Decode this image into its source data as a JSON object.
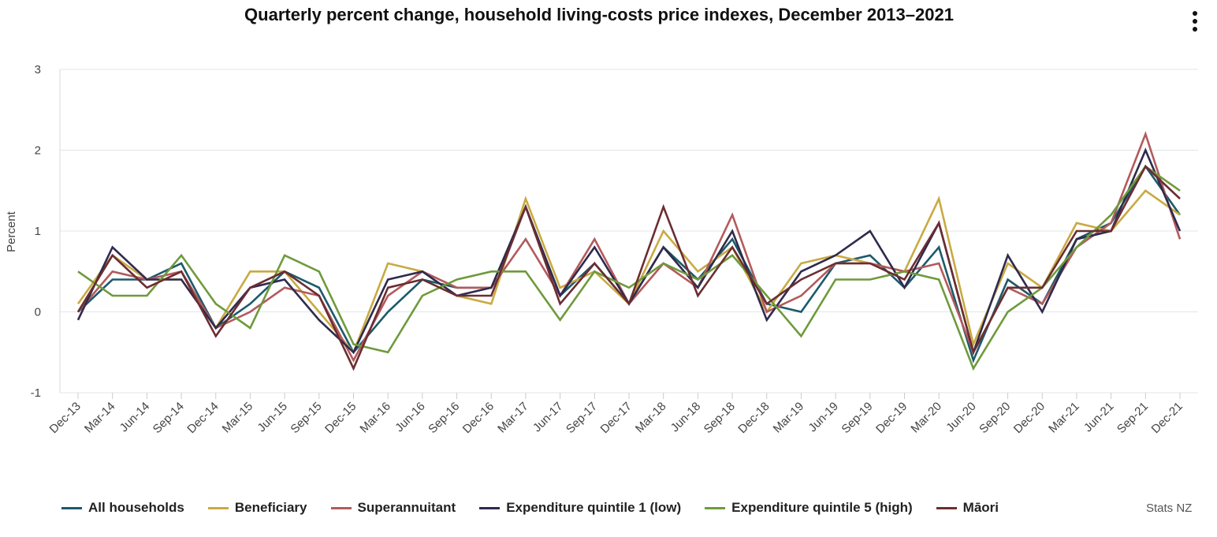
{
  "chart_data": {
    "type": "line",
    "title": "Quarterly percent change, household living-costs price indexes, December 2013–2021",
    "ylabel": "Percent",
    "xlabel": "",
    "ylim": [
      -1,
      3
    ],
    "yticks": [
      3,
      2,
      1,
      0,
      -1
    ],
    "grid": true,
    "legend_position": "bottom",
    "categories": [
      "Dec-13",
      "Mar-14",
      "Jun-14",
      "Sep-14",
      "Dec-14",
      "Mar-15",
      "Jun-15",
      "Sep-15",
      "Dec-15",
      "Mar-16",
      "Jun-16",
      "Sep-16",
      "Dec-16",
      "Mar-17",
      "Jun-17",
      "Sep-17",
      "Dec-17",
      "Mar-18",
      "Jun-18",
      "Sep-18",
      "Dec-18",
      "Mar-19",
      "Jun-19",
      "Sep-19",
      "Dec-19",
      "Mar-20",
      "Jun-20",
      "Sep-20",
      "Dec-20",
      "Mar-21",
      "Jun-21",
      "Sep-21",
      "Dec-21"
    ],
    "series": [
      {
        "name": "All households",
        "color": "#1c5a6b",
        "values": [
          0.0,
          0.4,
          0.4,
          0.6,
          -0.2,
          0.1,
          0.5,
          0.3,
          -0.5,
          0.0,
          0.4,
          0.3,
          0.3,
          1.3,
          0.2,
          0.6,
          0.1,
          0.8,
          0.4,
          0.9,
          0.1,
          0.0,
          0.6,
          0.7,
          0.3,
          0.8,
          -0.6,
          0.4,
          0.1,
          0.9,
          1.1,
          1.8,
          1.2
        ]
      },
      {
        "name": "Beneficiary",
        "color": "#c9aa42",
        "values": [
          0.1,
          0.7,
          0.4,
          0.4,
          -0.2,
          0.5,
          0.5,
          0.0,
          -0.5,
          0.6,
          0.5,
          0.2,
          0.1,
          1.4,
          0.3,
          0.5,
          0.1,
          1.0,
          0.5,
          0.8,
          0.0,
          0.6,
          0.7,
          0.6,
          0.5,
          1.4,
          -0.4,
          0.6,
          0.3,
          1.1,
          1.0,
          1.5,
          1.2
        ]
      },
      {
        "name": "Superannuitant",
        "color": "#b35a5c",
        "values": [
          0.0,
          0.5,
          0.4,
          0.5,
          -0.2,
          0.0,
          0.3,
          0.2,
          -0.6,
          0.2,
          0.5,
          0.3,
          0.3,
          0.9,
          0.2,
          0.9,
          0.1,
          0.6,
          0.3,
          1.2,
          0.0,
          0.2,
          0.6,
          0.6,
          0.5,
          0.6,
          -0.5,
          0.3,
          0.1,
          0.8,
          1.1,
          2.2,
          0.9
        ]
      },
      {
        "name": "Expenditure quintile 1 (low)",
        "color": "#2f2a4d",
        "values": [
          -0.1,
          0.8,
          0.4,
          0.4,
          -0.2,
          0.3,
          0.4,
          -0.1,
          -0.5,
          0.4,
          0.5,
          0.2,
          0.3,
          1.3,
          0.2,
          0.8,
          0.1,
          0.8,
          0.3,
          1.0,
          -0.1,
          0.5,
          0.7,
          1.0,
          0.3,
          1.1,
          -0.5,
          0.7,
          0.0,
          0.9,
          1.0,
          2.0,
          1.0
        ]
      },
      {
        "name": "Expenditure quintile 5 (high)",
        "color": "#6f9a3c",
        "values": [
          0.5,
          0.2,
          0.2,
          0.7,
          0.1,
          -0.2,
          0.7,
          0.5,
          -0.4,
          -0.5,
          0.2,
          0.4,
          0.5,
          0.5,
          -0.1,
          0.5,
          0.3,
          0.6,
          0.4,
          0.7,
          0.2,
          -0.3,
          0.4,
          0.4,
          0.5,
          0.4,
          -0.7,
          0.0,
          0.3,
          0.8,
          1.2,
          1.8,
          1.5
        ]
      },
      {
        "name": "Māori",
        "color": "#6b2d32",
        "values": [
          0.0,
          0.7,
          0.3,
          0.5,
          -0.3,
          0.3,
          0.5,
          0.2,
          -0.7,
          0.3,
          0.4,
          0.2,
          0.2,
          1.3,
          0.1,
          0.6,
          0.1,
          1.3,
          0.2,
          0.8,
          0.1,
          0.4,
          0.6,
          0.6,
          0.4,
          1.1,
          -0.5,
          0.3,
          0.3,
          1.0,
          1.0,
          1.8,
          1.4
        ]
      }
    ]
  },
  "credit": "Stats NZ"
}
